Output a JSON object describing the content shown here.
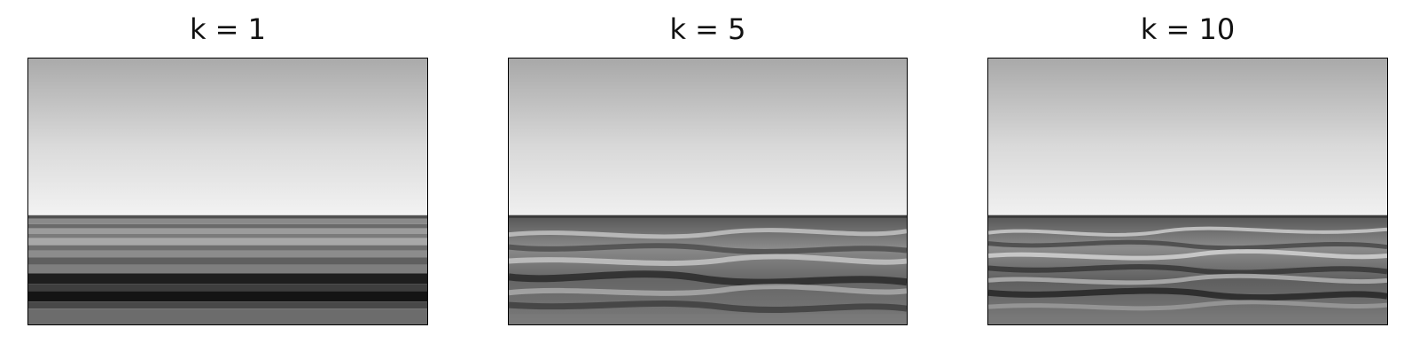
{
  "figure": {
    "panels": [
      {
        "id": "k1",
        "title": "k = 1",
        "k": 1,
        "image": "rank-1 approximation of ocean horizon photo (grayscale)"
      },
      {
        "id": "k5",
        "title": "k = 5",
        "k": 5,
        "image": "rank-5 approximation of ocean horizon photo (grayscale)"
      },
      {
        "id": "k10",
        "title": "k = 10",
        "k": 10,
        "image": "rank-10 approximation of ocean horizon photo (grayscale)"
      }
    ]
  }
}
